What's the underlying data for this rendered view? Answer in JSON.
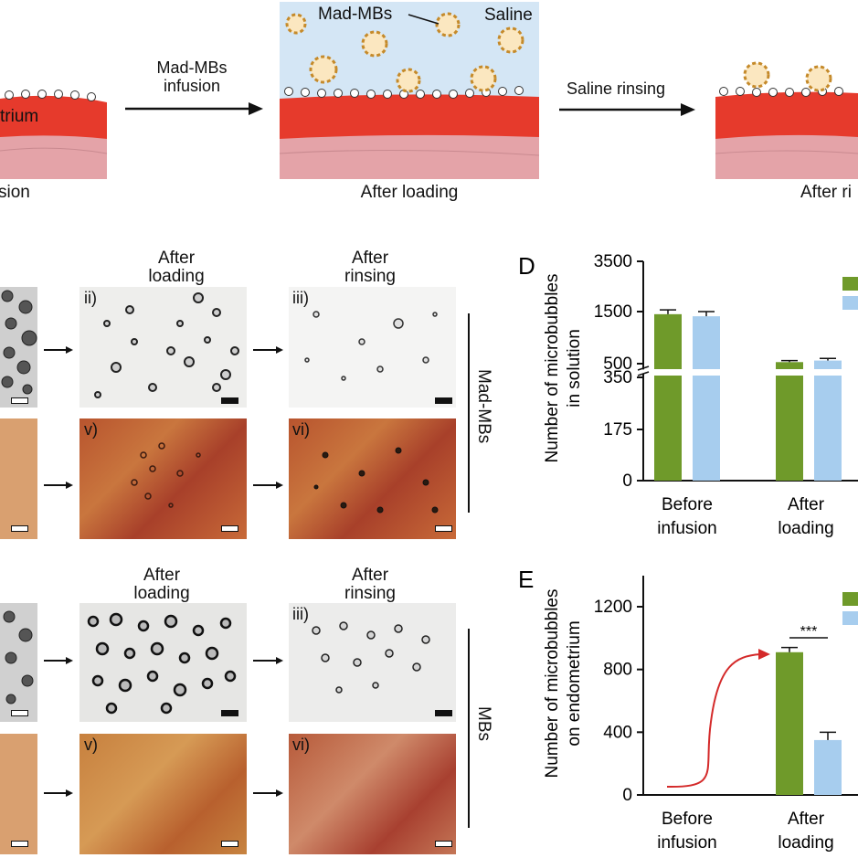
{
  "schematic": {
    "left_label_partial": "sion",
    "left_tissue_partial": "trium",
    "arrow1_line1": "Mad-MBs",
    "arrow1_line2": "infusion",
    "middle_mbs_label": "Mad-MBs",
    "middle_saline_label": "Saline",
    "middle_caption": "After loading",
    "arrow2_label": "Saline rinsing",
    "right_caption_partial": "After ri"
  },
  "micrographs": {
    "top_group": {
      "col2_title_1": "After",
      "col2_title_2": "loading",
      "col3_title_1": "After",
      "col3_title_2": "rinsing",
      "labels": [
        "ii)",
        "iii)",
        "v)",
        "vi)"
      ],
      "side_label": "Mad-MBs"
    },
    "bottom_group": {
      "col2_title_1": "After",
      "col2_title_2": "loading",
      "col3_title_1": "After",
      "col3_title_2": "rinsing",
      "labels": [
        "iii)",
        "v)",
        "vi)"
      ],
      "side_label": "MBs"
    }
  },
  "chart_data": [
    {
      "type": "bar",
      "panel_letter": "D",
      "ylabel_line1": "Number of microbubbles",
      "ylabel_line2": "in solution",
      "y_axis_break": true,
      "yticks": [
        "0",
        "175",
        "350",
        "500",
        "1500",
        "3500"
      ],
      "categories": [
        {
          "line1": "Before",
          "line2": "infusion"
        },
        {
          "line1": "After",
          "line2": "loading"
        }
      ],
      "series": [
        {
          "color": "#6f9a2a",
          "values": [
            1450,
            530
          ],
          "errors": [
            120,
            30
          ]
        },
        {
          "color": "#a7cdee",
          "values": [
            1410,
            560
          ],
          "errors": [
            90,
            40
          ]
        }
      ]
    },
    {
      "type": "bar",
      "panel_letter": "E",
      "ylabel_line1": "Number of microbubbles",
      "ylabel_line2": "on endometrium",
      "yticks": [
        "0",
        "400",
        "800",
        "1200"
      ],
      "ylim": [
        0,
        1400
      ],
      "categories": [
        {
          "line1": "Before",
          "line2": "infusion"
        },
        {
          "line1": "After",
          "line2": "loading"
        }
      ],
      "series": [
        {
          "color": "#6f9a2a",
          "values": [
            null,
            910
          ],
          "errors": [
            null,
            30
          ]
        },
        {
          "color": "#a7cdee",
          "values": [
            null,
            350
          ],
          "errors": [
            null,
            50
          ]
        }
      ],
      "significance": "***",
      "trend_arrow_color": "#d42a2a"
    }
  ]
}
